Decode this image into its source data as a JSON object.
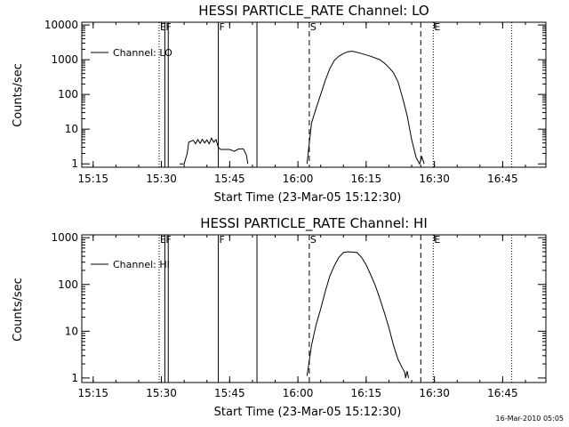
{
  "footer": {
    "date": "16-Mar-2010 05:05"
  },
  "chart_data": [
    {
      "type": "line",
      "title": "HESSI PARTICLE_RATE Channel: LO",
      "xlabel": "Start Time (23-Mar-05 15:12:30)",
      "ylabel": "Counts/sec",
      "y_scale": "log",
      "xlim": [
        "15:12:30",
        "16:54:30"
      ],
      "ylim": [
        0.8,
        12000
      ],
      "x_ticks": [
        "15:15",
        "15:30",
        "15:45",
        "16:00",
        "16:15",
        "16:30",
        "16:45"
      ],
      "y_ticks": [
        "1",
        "10",
        "100",
        "1000",
        "10000"
      ],
      "legend": {
        "position": "top-left",
        "label": "Channel: LO"
      },
      "vlines": [
        {
          "t": "15:29:30",
          "style": "dotted",
          "label": "E"
        },
        {
          "t": "15:30:45",
          "style": "solid",
          "label": "F"
        },
        {
          "t": "15:31:30",
          "style": "solid",
          "label": ""
        },
        {
          "t": "15:42:30",
          "style": "solid",
          "label": "F"
        },
        {
          "t": "15:51:00",
          "style": "solid",
          "label": ""
        },
        {
          "t": "16:02:30",
          "style": "dashed",
          "label": "S"
        },
        {
          "t": "16:27:00",
          "style": "dashed",
          "label": ""
        },
        {
          "t": "16:29:45",
          "style": "dotted",
          "label": "E"
        },
        {
          "t": "16:47:00",
          "style": "dotted",
          "label": ""
        }
      ],
      "series": [
        {
          "name": "Channel: LO",
          "segments": [
            [
              [
                "15:34:00",
                1
              ],
              [
                "15:35:00",
                1
              ],
              [
                "15:35:40",
                2
              ],
              [
                "15:36:00",
                4.2
              ],
              [
                "15:37:00",
                4.8
              ],
              [
                "15:37:30",
                3.8
              ],
              [
                "15:38:00",
                5
              ],
              [
                "15:38:30",
                3.9
              ],
              [
                "15:39:00",
                5.1
              ],
              [
                "15:39:30",
                4
              ],
              [
                "15:40:00",
                4.9
              ],
              [
                "15:40:30",
                3.8
              ],
              [
                "15:41:00",
                5.5
              ],
              [
                "15:41:30",
                4.2
              ],
              [
                "15:42:00",
                5
              ],
              [
                "15:42:30",
                3
              ],
              [
                "15:43:00",
                2.6
              ],
              [
                "15:45:00",
                2.6
              ],
              [
                "15:46:00",
                2.3
              ],
              [
                "15:47:00",
                2.7
              ],
              [
                "15:48:00",
                2.7
              ],
              [
                "15:48:40",
                1.8
              ],
              [
                "15:49:00",
                1
              ]
            ],
            [
              [
                "16:02:00",
                1
              ],
              [
                "16:03:00",
                15
              ],
              [
                "16:04:00",
                40
              ],
              [
                "16:05:00",
                100
              ],
              [
                "16:06:00",
                250
              ],
              [
                "16:07:00",
                550
              ],
              [
                "16:08:00",
                950
              ],
              [
                "16:09:00",
                1250
              ],
              [
                "16:10:00",
                1500
              ],
              [
                "16:11:00",
                1700
              ],
              [
                "16:12:00",
                1750
              ],
              [
                "16:14:00",
                1500
              ],
              [
                "16:16:00",
                1250
              ],
              [
                "16:18:00",
                1000
              ],
              [
                "16:19:00",
                800
              ],
              [
                "16:20:00",
                600
              ],
              [
                "16:21:00",
                420
              ],
              [
                "16:22:00",
                230
              ],
              [
                "16:23:00",
                80
              ],
              [
                "16:24:00",
                25
              ],
              [
                "16:25:00",
                5
              ],
              [
                "16:26:00",
                1.5
              ],
              [
                "16:26:45",
                1
              ],
              [
                "16:27:15",
                1.6
              ],
              [
                "16:27:45",
                1
              ]
            ]
          ]
        }
      ]
    },
    {
      "type": "line",
      "title": "HESSI PARTICLE_RATE Channel: HI",
      "xlabel": "Start Time (23-Mar-05 15:12:30)",
      "ylabel": "Counts/sec",
      "y_scale": "log",
      "xlim": [
        "15:12:30",
        "16:54:30"
      ],
      "ylim": [
        0.8,
        1150
      ],
      "x_ticks": [
        "15:15",
        "15:30",
        "15:45",
        "16:00",
        "16:15",
        "16:30",
        "16:45"
      ],
      "y_ticks": [
        "1",
        "10",
        "100",
        "1000"
      ],
      "legend": {
        "position": "top-left",
        "label": "Channel: HI"
      },
      "vlines": [
        {
          "t": "15:29:30",
          "style": "dotted",
          "label": "E"
        },
        {
          "t": "15:30:45",
          "style": "solid",
          "label": "F"
        },
        {
          "t": "15:31:30",
          "style": "solid",
          "label": ""
        },
        {
          "t": "15:42:30",
          "style": "solid",
          "label": "F"
        },
        {
          "t": "15:51:00",
          "style": "solid",
          "label": ""
        },
        {
          "t": "16:02:30",
          "style": "dashed",
          "label": "S"
        },
        {
          "t": "16:27:00",
          "style": "dashed",
          "label": ""
        },
        {
          "t": "16:29:45",
          "style": "dotted",
          "label": "E"
        },
        {
          "t": "16:47:00",
          "style": "dotted",
          "label": ""
        }
      ],
      "series": [
        {
          "name": "Channel: HI",
          "segments": [
            [
              [
                "16:02:00",
                1.1
              ],
              [
                "16:03:00",
                5
              ],
              [
                "16:04:00",
                14
              ],
              [
                "16:05:00",
                30
              ],
              [
                "16:06:00",
                70
              ],
              [
                "16:07:00",
                150
              ],
              [
                "16:08:00",
                250
              ],
              [
                "16:09:00",
                380
              ],
              [
                "16:10:00",
                480
              ],
              [
                "16:11:00",
                500
              ],
              [
                "16:13:00",
                480
              ],
              [
                "16:14:00",
                380
              ],
              [
                "16:15:00",
                260
              ],
              [
                "16:16:00",
                160
              ],
              [
                "16:17:00",
                95
              ],
              [
                "16:18:00",
                50
              ],
              [
                "16:19:00",
                25
              ],
              [
                "16:20:00",
                12
              ],
              [
                "16:21:00",
                5
              ],
              [
                "16:22:00",
                2.5
              ],
              [
                "16:23:00",
                1.6
              ],
              [
                "16:23:30",
                1.3
              ],
              [
                "16:23:40",
                1
              ],
              [
                "16:24:00",
                1.4
              ],
              [
                "16:24:20",
                1
              ]
            ]
          ]
        }
      ]
    }
  ]
}
